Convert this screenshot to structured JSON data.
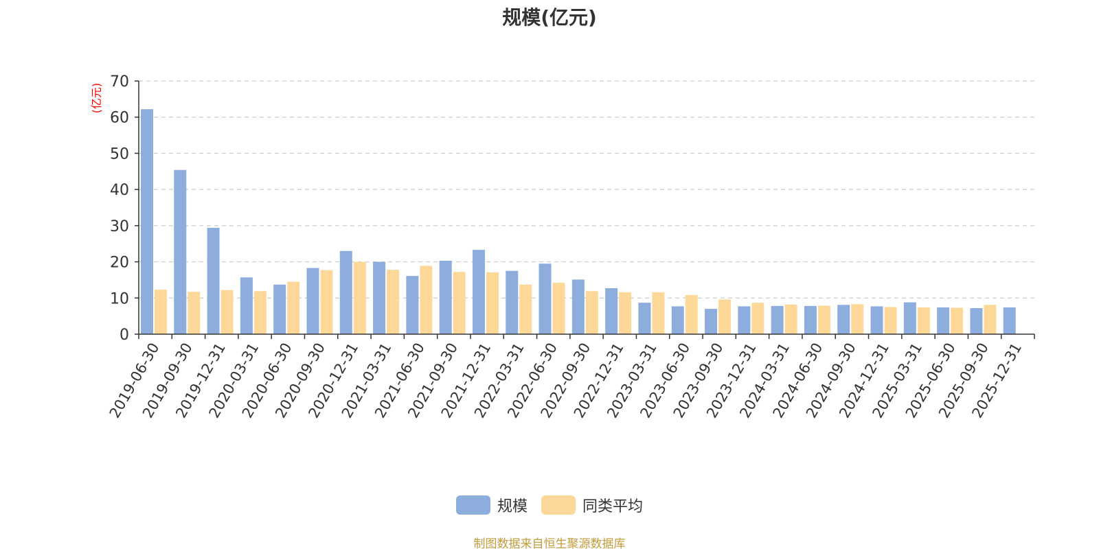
{
  "title": "规模(亿元)",
  "source_note": "制图数据来自恒生聚源数据库",
  "colors": {
    "series1": "#8daedd",
    "series2": "#fed898",
    "axis": "#333333",
    "grid": "#cccccc",
    "unit": "#ff0000"
  },
  "chart_data": {
    "type": "bar",
    "title": "规模(亿元)",
    "ylabel": "(亿元)",
    "ylim": [
      0,
      70
    ],
    "yticks": [
      0,
      10,
      20,
      30,
      40,
      50,
      60,
      70
    ],
    "grid": true,
    "legend_position": "bottom-center",
    "categories": [
      "2019-06-30",
      "2019-09-30",
      "2019-12-31",
      "2020-03-31",
      "2020-06-30",
      "2020-09-30",
      "2020-12-31",
      "2021-03-31",
      "2021-06-30",
      "2021-09-30",
      "2021-12-31",
      "2022-03-31",
      "2022-06-30",
      "2022-09-30",
      "2022-12-31",
      "2023-03-31",
      "2023-06-30",
      "2023-09-30",
      "2023-12-31",
      "2024-03-31",
      "2024-06-30",
      "2024-09-30",
      "2024-12-31",
      "2025-03-31",
      "2025-06-30",
      "2025-09-30",
      "2025-12-31"
    ],
    "series": [
      {
        "name": "规模",
        "values": [
          62.2,
          45.4,
          29.4,
          15.7,
          13.7,
          18.3,
          23.0,
          20.0,
          16.1,
          20.3,
          23.3,
          17.5,
          19.5,
          15.1,
          12.7,
          8.7,
          7.7,
          7.0,
          7.7,
          7.8,
          7.8,
          8.1,
          7.7,
          8.8,
          7.4,
          7.2,
          7.4
        ]
      },
      {
        "name": "同类平均",
        "values": [
          12.3,
          11.7,
          12.2,
          11.9,
          14.5,
          17.7,
          20.0,
          17.8,
          18.9,
          17.2,
          17.1,
          13.7,
          14.2,
          11.9,
          11.6,
          11.6,
          10.8,
          9.6,
          8.7,
          8.2,
          7.9,
          8.3,
          7.5,
          7.4,
          7.3,
          8.1,
          null
        ]
      }
    ]
  }
}
